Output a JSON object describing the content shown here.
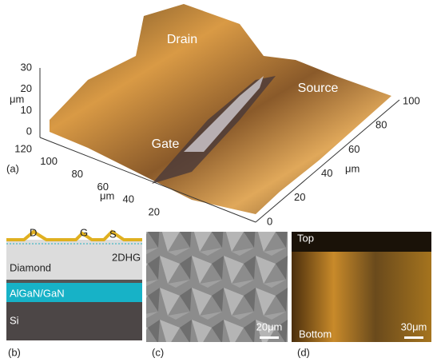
{
  "panel_a": {
    "label": "(a)",
    "regions": [
      "Drain",
      "Source",
      "Gate"
    ],
    "z_axis": {
      "unit": "μm",
      "ticks": [
        "30",
        "20",
        "10",
        "0"
      ]
    },
    "left_axis": {
      "unit": "μm",
      "ticks": [
        "120",
        "100",
        "80",
        "60",
        "40",
        "20"
      ]
    },
    "right_axis": {
      "unit": "μm",
      "ticks": [
        "0",
        "20",
        "40",
        "60",
        "80",
        "100"
      ]
    }
  },
  "panel_b": {
    "label": "(b)",
    "contacts": [
      "D",
      "G",
      "S"
    ],
    "channel": "2DHG",
    "layers": [
      "Diamond",
      "AlGaN/GaN",
      "Si"
    ]
  },
  "panel_c": {
    "label": "(c)",
    "scale_bar": "20μm"
  },
  "panel_d": {
    "label": "(d)",
    "top": "Top",
    "bottom": "Bottom",
    "scale_bar": "30μm"
  }
}
